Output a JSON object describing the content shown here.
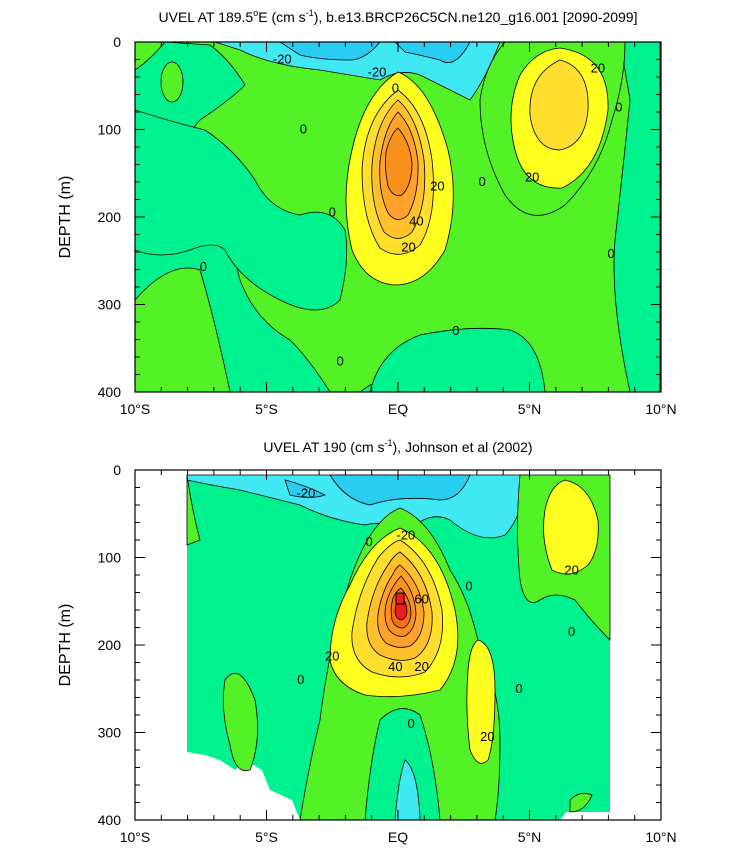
{
  "chart_data": [
    {
      "type": "contour",
      "title_main": "UVEL AT 189.5",
      "title_deg": "o",
      "title_e": "E (cm s",
      "title_sup": "-1",
      "title_rest": "), b.e13.BRCP26C5CN.ne120_g16.001 [2090-2099]",
      "ylabel": "DEPTH (m)",
      "xlim": [
        -10,
        10
      ],
      "ylim": [
        0,
        400
      ],
      "y_inverted": true,
      "x_ticks": [
        -10,
        -5,
        0,
        5,
        10
      ],
      "x_tick_labels": [
        "10°S",
        "5°S",
        "EQ",
        "5°N",
        "10°N"
      ],
      "y_ticks": [
        0,
        100,
        200,
        300,
        400
      ],
      "y_tick_labels": [
        "0",
        "100",
        "200",
        "300",
        "400"
      ],
      "contour_levels": [
        -20,
        -10,
        0,
        10,
        20,
        30,
        40,
        50
      ],
      "contour_labels": [
        {
          "text": "20",
          "x": 0.4,
          "y": 235
        },
        {
          "text": "40",
          "x": 0.7,
          "y": 205
        },
        {
          "text": "20",
          "x": 1.5,
          "y": 165
        },
        {
          "text": "0",
          "x": -0.1,
          "y": 53
        },
        {
          "text": "0",
          "x": -3.6,
          "y": 100
        },
        {
          "text": "0",
          "x": -2.5,
          "y": 195
        },
        {
          "text": "0",
          "x": -7.4,
          "y": 257
        },
        {
          "text": "0",
          "x": 2.2,
          "y": 330
        },
        {
          "text": "0",
          "x": -2.2,
          "y": 365
        },
        {
          "text": "0",
          "x": 3.2,
          "y": 160
        },
        {
          "text": "0",
          "x": 8.4,
          "y": 75
        },
        {
          "text": "0",
          "x": 8.1,
          "y": 242
        },
        {
          "text": "-20",
          "x": -4.4,
          "y": 20
        },
        {
          "text": "-20",
          "x": -0.8,
          "y": 35
        },
        {
          "text": "20",
          "x": 7.6,
          "y": 30
        },
        {
          "text": "20",
          "x": 5.1,
          "y": 155
        }
      ]
    },
    {
      "type": "contour",
      "title_main": "UVEL AT 190 (cm s",
      "title_sup": "-1",
      "title_rest": "), Johnson et al (2002)",
      "ylabel": "DEPTH (m)",
      "xlim": [
        -10,
        10
      ],
      "ylim": [
        0,
        400
      ],
      "y_inverted": true,
      "x_ticks": [
        -10,
        -5,
        0,
        5,
        10
      ],
      "x_tick_labels": [
        "10°S",
        "5°S",
        "EQ",
        "5°N",
        "10°N"
      ],
      "y_ticks": [
        0,
        100,
        200,
        300,
        400
      ],
      "y_tick_labels": [
        "0",
        "100",
        "200",
        "300",
        "400"
      ],
      "contour_levels": [
        -20,
        -10,
        0,
        10,
        20,
        30,
        40,
        50,
        60,
        70
      ],
      "contour_labels": [
        {
          "text": "-20",
          "x": -3.5,
          "y": 27
        },
        {
          "text": "0",
          "x": -1.1,
          "y": 82
        },
        {
          "text": "-20",
          "x": 0.3,
          "y": 75
        },
        {
          "text": "0",
          "x": 2.7,
          "y": 133
        },
        {
          "text": "60",
          "x": 0.9,
          "y": 148
        },
        {
          "text": "20",
          "x": -2.5,
          "y": 213
        },
        {
          "text": "40",
          "x": -0.1,
          "y": 225
        },
        {
          "text": "20",
          "x": 0.9,
          "y": 225
        },
        {
          "text": "0",
          "x": -3.7,
          "y": 240
        },
        {
          "text": "0",
          "x": 0.5,
          "y": 290
        },
        {
          "text": "0",
          "x": 4.6,
          "y": 250
        },
        {
          "text": "20",
          "x": 3.4,
          "y": 305
        },
        {
          "text": "0",
          "x": 6.6,
          "y": 185
        },
        {
          "text": "20",
          "x": 6.6,
          "y": 115
        }
      ]
    }
  ]
}
